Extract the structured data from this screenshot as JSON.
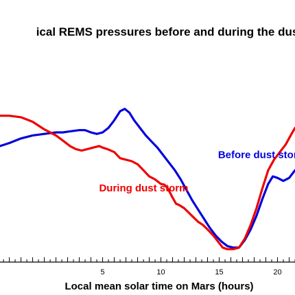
{
  "chart_data": {
    "type": "line",
    "title": "ical REMS pressures before and during the dus",
    "xlabel": "Local mean solar time on Mars (hours)",
    "ylabel": "",
    "xlim": [
      -3.8,
      21.5
    ],
    "ylim": [
      0,
      100
    ],
    "x_ticks": [
      5,
      10,
      15,
      20
    ],
    "x_minor_step": 0.5,
    "grid": false,
    "series": [
      {
        "color": "#0000dd",
        "points": [
          [
            -3.8,
            72
          ],
          [
            -3.0,
            74
          ],
          [
            -2.0,
            77
          ],
          [
            -1.0,
            79
          ],
          [
            0.0,
            80
          ],
          [
            1.0,
            81
          ],
          [
            1.6,
            81
          ],
          [
            2.0,
            81.5
          ],
          [
            2.5,
            82
          ],
          [
            3.0,
            82.5
          ],
          [
            3.5,
            82.5
          ],
          [
            4.0,
            81
          ],
          [
            4.5,
            80
          ],
          [
            5.0,
            81
          ],
          [
            5.5,
            84
          ],
          [
            6.0,
            89
          ],
          [
            6.5,
            95
          ],
          [
            6.9,
            96.5
          ],
          [
            7.3,
            94
          ],
          [
            7.7,
            89
          ],
          [
            8.2,
            84
          ],
          [
            8.7,
            79
          ],
          [
            9.2,
            75
          ],
          [
            9.7,
            71
          ],
          [
            10.2,
            66
          ],
          [
            10.7,
            61
          ],
          [
            11.2,
            56
          ],
          [
            11.7,
            50
          ],
          [
            12.2,
            43
          ],
          [
            12.7,
            36
          ],
          [
            13.2,
            30
          ],
          [
            13.7,
            24
          ],
          [
            14.2,
            18
          ],
          [
            14.7,
            13
          ],
          [
            15.2,
            9
          ],
          [
            15.7,
            6
          ],
          [
            16.2,
            5
          ],
          [
            16.7,
            5
          ],
          [
            17.2,
            10
          ],
          [
            17.7,
            17
          ],
          [
            18.2,
            26
          ],
          [
            18.7,
            37
          ],
          [
            19.2,
            47
          ],
          [
            19.6,
            52
          ],
          [
            20.0,
            51
          ],
          [
            20.5,
            49
          ],
          [
            21.0,
            51
          ],
          [
            21.5,
            56
          ]
        ]
      },
      {
        "color": "#ee0000",
        "points": [
          [
            -3.8,
            92
          ],
          [
            -3.0,
            92
          ],
          [
            -2.0,
            91
          ],
          [
            -1.0,
            88
          ],
          [
            0.0,
            83
          ],
          [
            1.0,
            79
          ],
          [
            1.7,
            75
          ],
          [
            2.2,
            72
          ],
          [
            2.7,
            70
          ],
          [
            3.2,
            69
          ],
          [
            3.7,
            70
          ],
          [
            4.2,
            71
          ],
          [
            4.7,
            72
          ],
          [
            5.0,
            71
          ],
          [
            5.4,
            70
          ],
          [
            6.0,
            68
          ],
          [
            6.5,
            64
          ],
          [
            7.0,
            63
          ],
          [
            7.5,
            62
          ],
          [
            8.0,
            60
          ],
          [
            8.5,
            56
          ],
          [
            9.0,
            52
          ],
          [
            9.5,
            50
          ],
          [
            10.0,
            47
          ],
          [
            10.3,
            46.5
          ],
          [
            10.6,
            44
          ],
          [
            11.0,
            38
          ],
          [
            11.3,
            34
          ],
          [
            11.6,
            33
          ],
          [
            12.0,
            31
          ],
          [
            12.4,
            28
          ],
          [
            12.8,
            25
          ],
          [
            13.2,
            22
          ],
          [
            13.6,
            20
          ],
          [
            14.0,
            17
          ],
          [
            14.5,
            13
          ],
          [
            15.0,
            8
          ],
          [
            15.3,
            5
          ],
          [
            15.7,
            4
          ],
          [
            16.2,
            4
          ],
          [
            16.7,
            5
          ],
          [
            17.2,
            11
          ],
          [
            17.7,
            20
          ],
          [
            18.2,
            31
          ],
          [
            18.7,
            44
          ],
          [
            19.2,
            56
          ],
          [
            19.7,
            63
          ],
          [
            20.2,
            68
          ],
          [
            20.7,
            73
          ],
          [
            21.2,
            80
          ],
          [
            21.5,
            84
          ]
        ]
      }
    ],
    "annotations": [
      {
        "text": "Before dust storm",
        "x": 14.9,
        "y": 64,
        "color": "#0000dd"
      },
      {
        "text": "During dust storm",
        "x": 4.7,
        "y": 42,
        "color": "#ee0000"
      }
    ]
  }
}
